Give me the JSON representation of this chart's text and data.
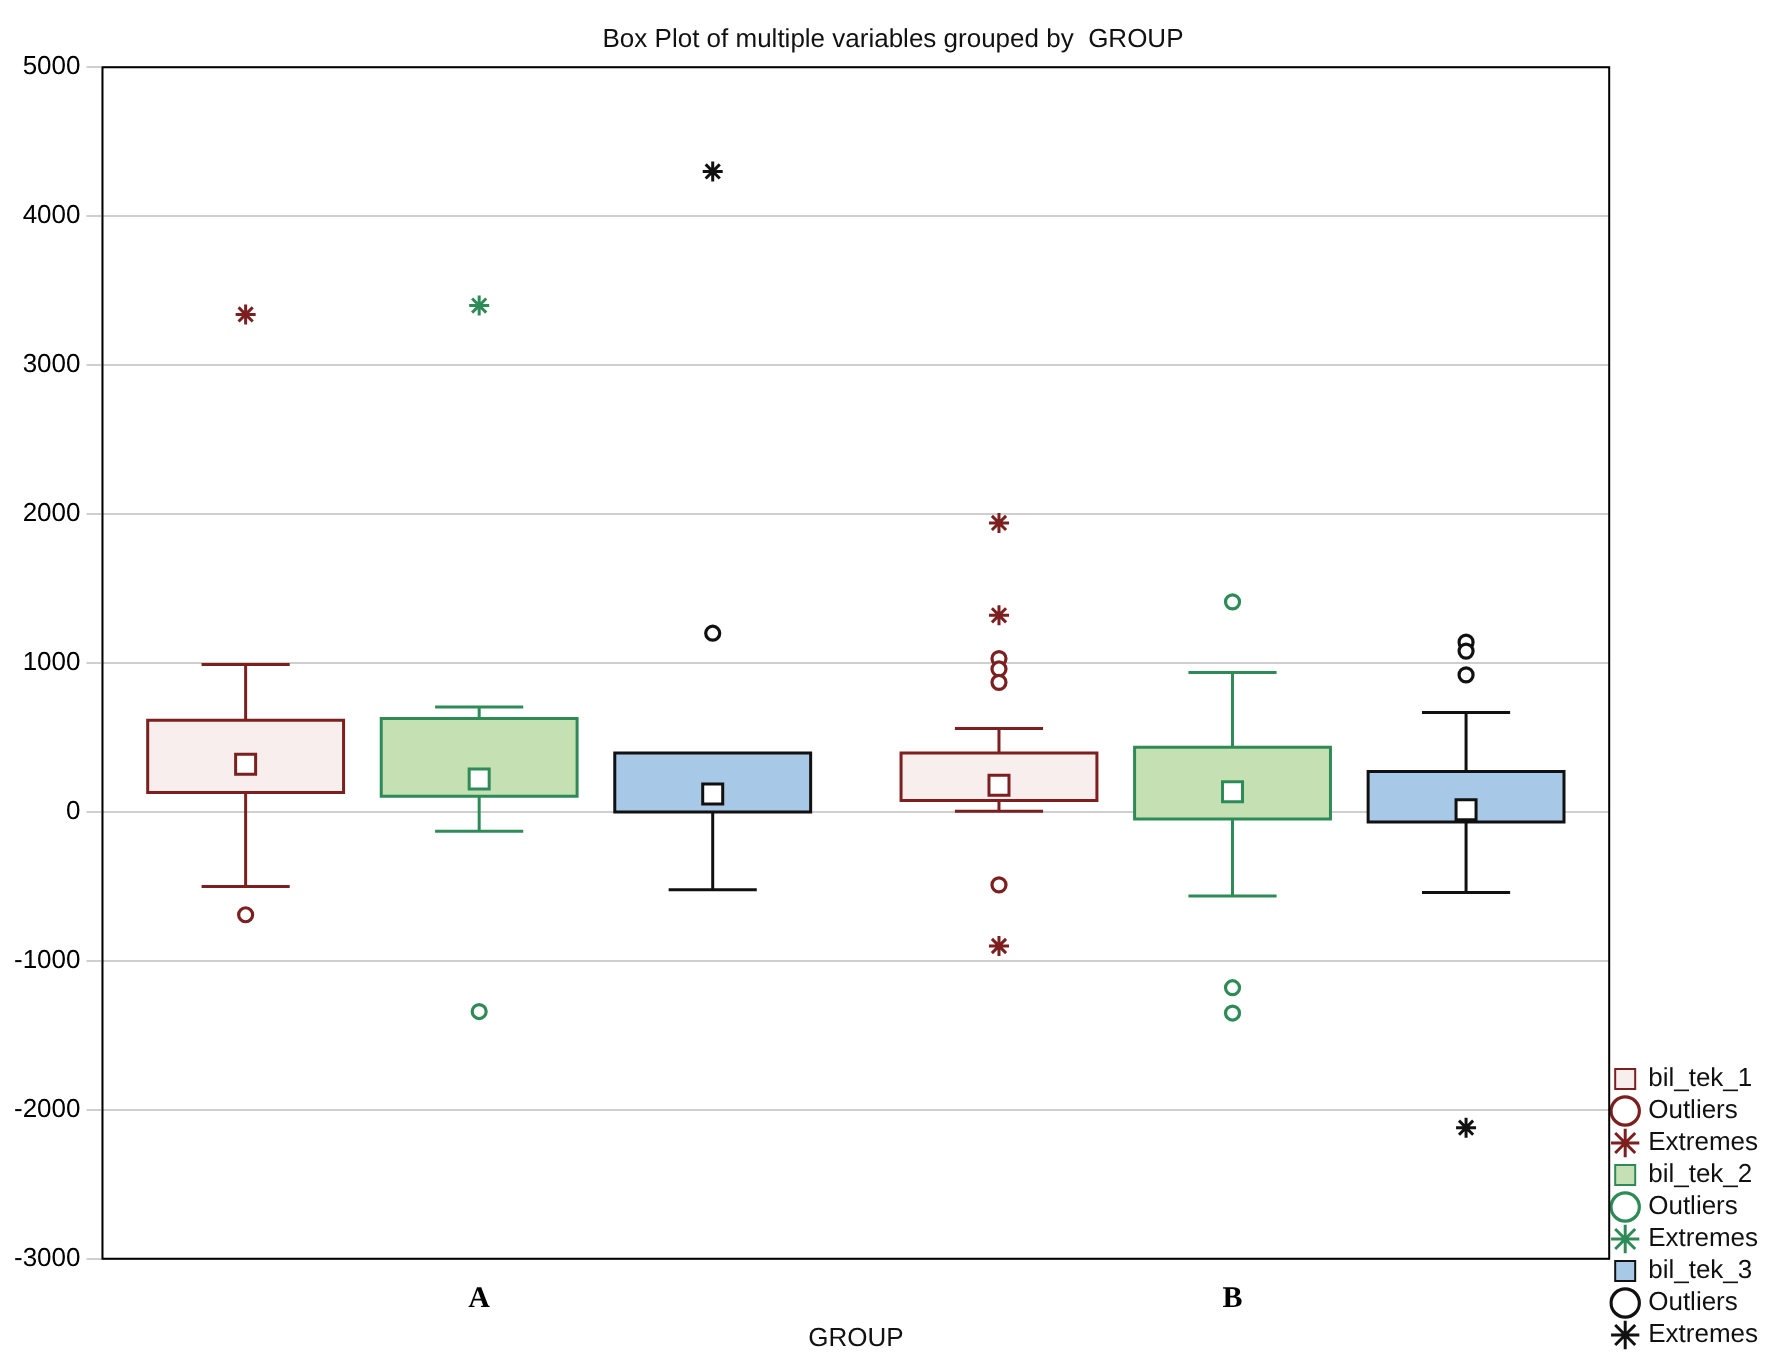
{
  "chart_data": {
    "type": "box",
    "title": "Box Plot of multiple variables grouped by  GROUP",
    "xlabel": "GROUP",
    "categories": [
      "A",
      "B"
    ],
    "ylim": [
      -3000,
      5000
    ],
    "yticks": [
      -3000,
      -2000,
      -1000,
      0,
      1000,
      2000,
      3000,
      4000,
      5000
    ],
    "grid": "y",
    "legend": "bottom right",
    "series": [
      {
        "name": "bil_tek_1",
        "type": "box",
        "color": "#f8eeee",
        "boxes": [
          {
            "low": -500,
            "q1": 130,
            "median": 320,
            "q3": 615,
            "high": 990
          },
          {
            "low": 5,
            "q1": 77,
            "median": 179,
            "q3": 396,
            "high": 560
          }
        ]
      },
      {
        "name": "Outliers",
        "type": "scatter",
        "marker": "circle",
        "color": "#7b1f1f",
        "x": [
          "A",
          "B",
          "B",
          "B",
          "B"
        ],
        "values": [
          -690,
          1030,
          960,
          870,
          -490
        ]
      },
      {
        "name": "Extremes",
        "type": "scatter",
        "marker": "cross",
        "color": "#7b1f1f",
        "x": [
          "A",
          "B",
          "B",
          "B"
        ],
        "values": [
          3340,
          1940,
          1320,
          -900
        ]
      },
      {
        "name": "bil_tek_2",
        "type": "box",
        "color": "#c5e0b3",
        "boxes": [
          {
            "low": -130,
            "q1": 106,
            "median": 222,
            "q3": 628,
            "high": 705
          },
          {
            "low": -565,
            "q1": -48,
            "median": 135,
            "q3": 435,
            "high": 937
          }
        ]
      },
      {
        "name": "Outliers",
        "type": "scatter",
        "marker": "circle",
        "color": "#2e8b57",
        "x": [
          "A",
          "B",
          "B",
          "B"
        ],
        "values": [
          -1340,
          1410,
          -1180,
          -1350
        ]
      },
      {
        "name": "Extremes",
        "type": "scatter",
        "marker": "cross",
        "color": "#2e8b57",
        "x": [
          "A"
        ],
        "values": [
          3400
        ]
      },
      {
        "name": "bil_tek_3",
        "type": "box",
        "color": "#a8c8e8",
        "boxes": [
          {
            "low": -522,
            "q1": 0,
            "median": 121,
            "q3": 396,
            "high": null
          },
          {
            "low": -541,
            "q1": -68,
            "median": 14,
            "q3": 271,
            "high": 667
          }
        ]
      },
      {
        "name": "Outliers",
        "type": "scatter",
        "marker": "circle",
        "color": "#111111",
        "x": [
          "A",
          "B",
          "B",
          "B"
        ],
        "values": [
          1200,
          1140,
          1080,
          920
        ]
      },
      {
        "name": "Extremes",
        "type": "scatter",
        "marker": "cross",
        "color": "#111111",
        "x": [
          "A",
          "B"
        ],
        "values": [
          4300,
          -2120
        ]
      }
    ]
  }
}
